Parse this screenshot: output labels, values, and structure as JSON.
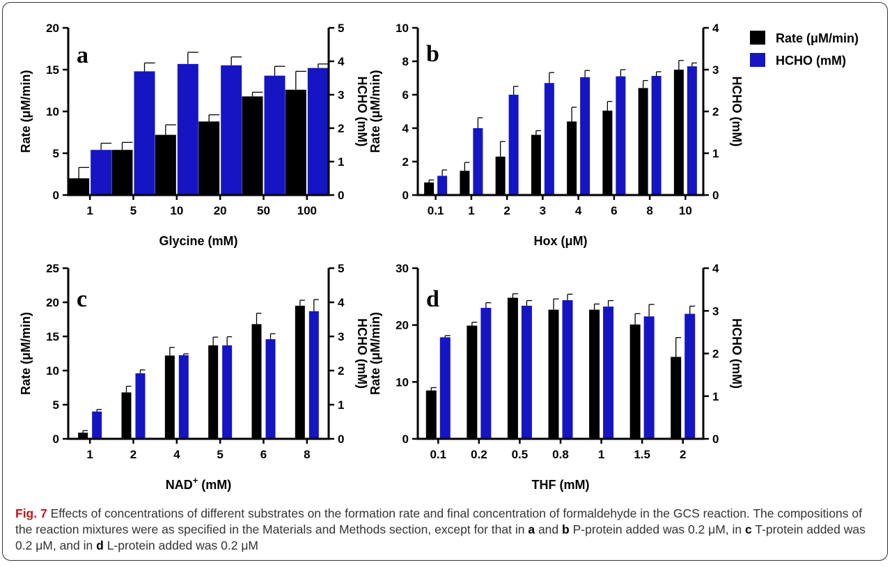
{
  "legend": [
    {
      "label": "Rate (μM/min)",
      "color": "#000000"
    },
    {
      "label": "HCHO (mM)",
      "color": "#1515c4"
    }
  ],
  "chart_data": [
    {
      "panel": "a",
      "type": "bar",
      "xlabel": "Glycine (mM)",
      "ylabel_left": "Rate (μM/min)",
      "ylabel_right": "HCHO (mM)",
      "categories": [
        "1",
        "5",
        "10",
        "20",
        "50",
        "100"
      ],
      "ylim_left": [
        0,
        20
      ],
      "yticks_left": [
        "0",
        "5",
        "10",
        "15",
        "20"
      ],
      "ylim_right": [
        0,
        5
      ],
      "yticks_right": [
        "0",
        "1",
        "2",
        "3",
        "4",
        "5"
      ],
      "series": [
        {
          "name": "Rate (μM/min)",
          "axis": "left",
          "values": [
            2.0,
            5.4,
            7.2,
            8.8,
            11.8,
            12.6
          ],
          "errors": [
            1.3,
            0.9,
            1.2,
            0.8,
            0.5,
            2.2
          ]
        },
        {
          "name": "HCHO (mM)",
          "axis": "right",
          "values": [
            1.35,
            3.7,
            3.92,
            3.88,
            3.57,
            3.8
          ],
          "errors": [
            0.2,
            0.25,
            0.35,
            0.25,
            0.28,
            0.12
          ]
        }
      ]
    },
    {
      "panel": "b",
      "type": "bar",
      "xlabel": "Hox (μM)",
      "ylabel_left": "Rate (μM/min)",
      "ylabel_right": "HCHO (mM)",
      "categories": [
        "0.1",
        "1",
        "2",
        "3",
        "4",
        "6",
        "8",
        "10"
      ],
      "ylim_left": [
        0,
        10
      ],
      "yticks_left": [
        "0",
        "2",
        "4",
        "6",
        "8",
        "10"
      ],
      "ylim_right": [
        0,
        4
      ],
      "yticks_right": [
        "0",
        "1",
        "2",
        "3",
        "4"
      ],
      "series": [
        {
          "name": "Rate (μM/min)",
          "axis": "left",
          "values": [
            0.75,
            1.45,
            2.3,
            3.6,
            4.4,
            5.05,
            6.4,
            7.5
          ],
          "errors": [
            0.15,
            0.5,
            0.9,
            0.25,
            0.85,
            0.55,
            0.45,
            0.55
          ]
        },
        {
          "name": "HCHO (mM)",
          "axis": "right",
          "values": [
            0.46,
            1.6,
            2.4,
            2.68,
            2.82,
            2.84,
            2.85,
            3.08
          ],
          "errors": [
            0.14,
            0.25,
            0.2,
            0.25,
            0.16,
            0.16,
            0.1,
            0.08
          ]
        }
      ]
    },
    {
      "panel": "c",
      "type": "bar",
      "xlabel": "NAD",
      "xlabel_sup": "+",
      "xlabel_unit": " (mM)",
      "ylabel_left": "Rate (μM/min)",
      "ylabel_right": "HCHO (mM)",
      "categories": [
        "1",
        "2",
        "4",
        "5",
        "6",
        "8"
      ],
      "ylim_left": [
        0,
        25
      ],
      "yticks_left": [
        "0",
        "5",
        "10",
        "15",
        "20",
        "25"
      ],
      "ylim_right": [
        0,
        5
      ],
      "yticks_right": [
        "0",
        "1",
        "2",
        "3",
        "4",
        "5"
      ],
      "series": [
        {
          "name": "Rate (μM/min)",
          "axis": "left",
          "values": [
            0.9,
            6.8,
            12.2,
            13.7,
            16.8,
            19.5
          ],
          "errors": [
            0.3,
            0.9,
            1.2,
            1.2,
            1.6,
            0.8
          ]
        },
        {
          "name": "HCHO (mM)",
          "axis": "right",
          "values": [
            0.8,
            1.92,
            2.45,
            2.74,
            2.92,
            3.74
          ],
          "errors": [
            0.06,
            0.1,
            0.04,
            0.25,
            0.16,
            0.34
          ]
        }
      ]
    },
    {
      "panel": "d",
      "type": "bar",
      "xlabel": "THF (mM)",
      "ylabel_left": "Rate (μM/min)",
      "ylabel_right": "HCHO (mM)",
      "categories": [
        "0.1",
        "0.2",
        "0.5",
        "0.8",
        "1",
        "1.5",
        "2"
      ],
      "ylim_left": [
        0,
        30
      ],
      "yticks_left": [
        "0",
        "10",
        "20",
        "30"
      ],
      "ylim_right": [
        0,
        4
      ],
      "yticks_right": [
        "0",
        "1",
        "2",
        "3",
        "4"
      ],
      "series": [
        {
          "name": "Rate (μM/min)",
          "axis": "left",
          "values": [
            8.5,
            19.9,
            24.8,
            22.7,
            22.7,
            20.1,
            14.4
          ],
          "errors": [
            0.5,
            0.6,
            0.7,
            1.9,
            1.0,
            1.9,
            3.4
          ]
        },
        {
          "name": "HCHO (mM)",
          "axis": "right",
          "values": [
            2.38,
            3.07,
            3.12,
            3.25,
            3.1,
            2.87,
            2.93
          ],
          "errors": [
            0.04,
            0.12,
            0.12,
            0.14,
            0.14,
            0.28,
            0.18
          ]
        }
      ]
    }
  ],
  "caption": {
    "label": "Fig. 7",
    "segments": [
      {
        "text": " Effects of concentrations of different substrates on the formation rate and final concentration of formaldehyde in the GCS reaction. The compositions of the reaction mixtures were as specified in the Materials and Methods section, except for that in ",
        "bold": false
      },
      {
        "text": "a",
        "bold": true
      },
      {
        "text": " and ",
        "bold": false
      },
      {
        "text": "b",
        "bold": true
      },
      {
        "text": " P-protein added was 0.2 μM, in ",
        "bold": false
      },
      {
        "text": "c",
        "bold": true
      },
      {
        "text": " T-protein added was 0.2 μM, and in ",
        "bold": false
      },
      {
        "text": "d",
        "bold": true
      },
      {
        "text": " L-protein added was 0.2 μM",
        "bold": false
      }
    ]
  }
}
